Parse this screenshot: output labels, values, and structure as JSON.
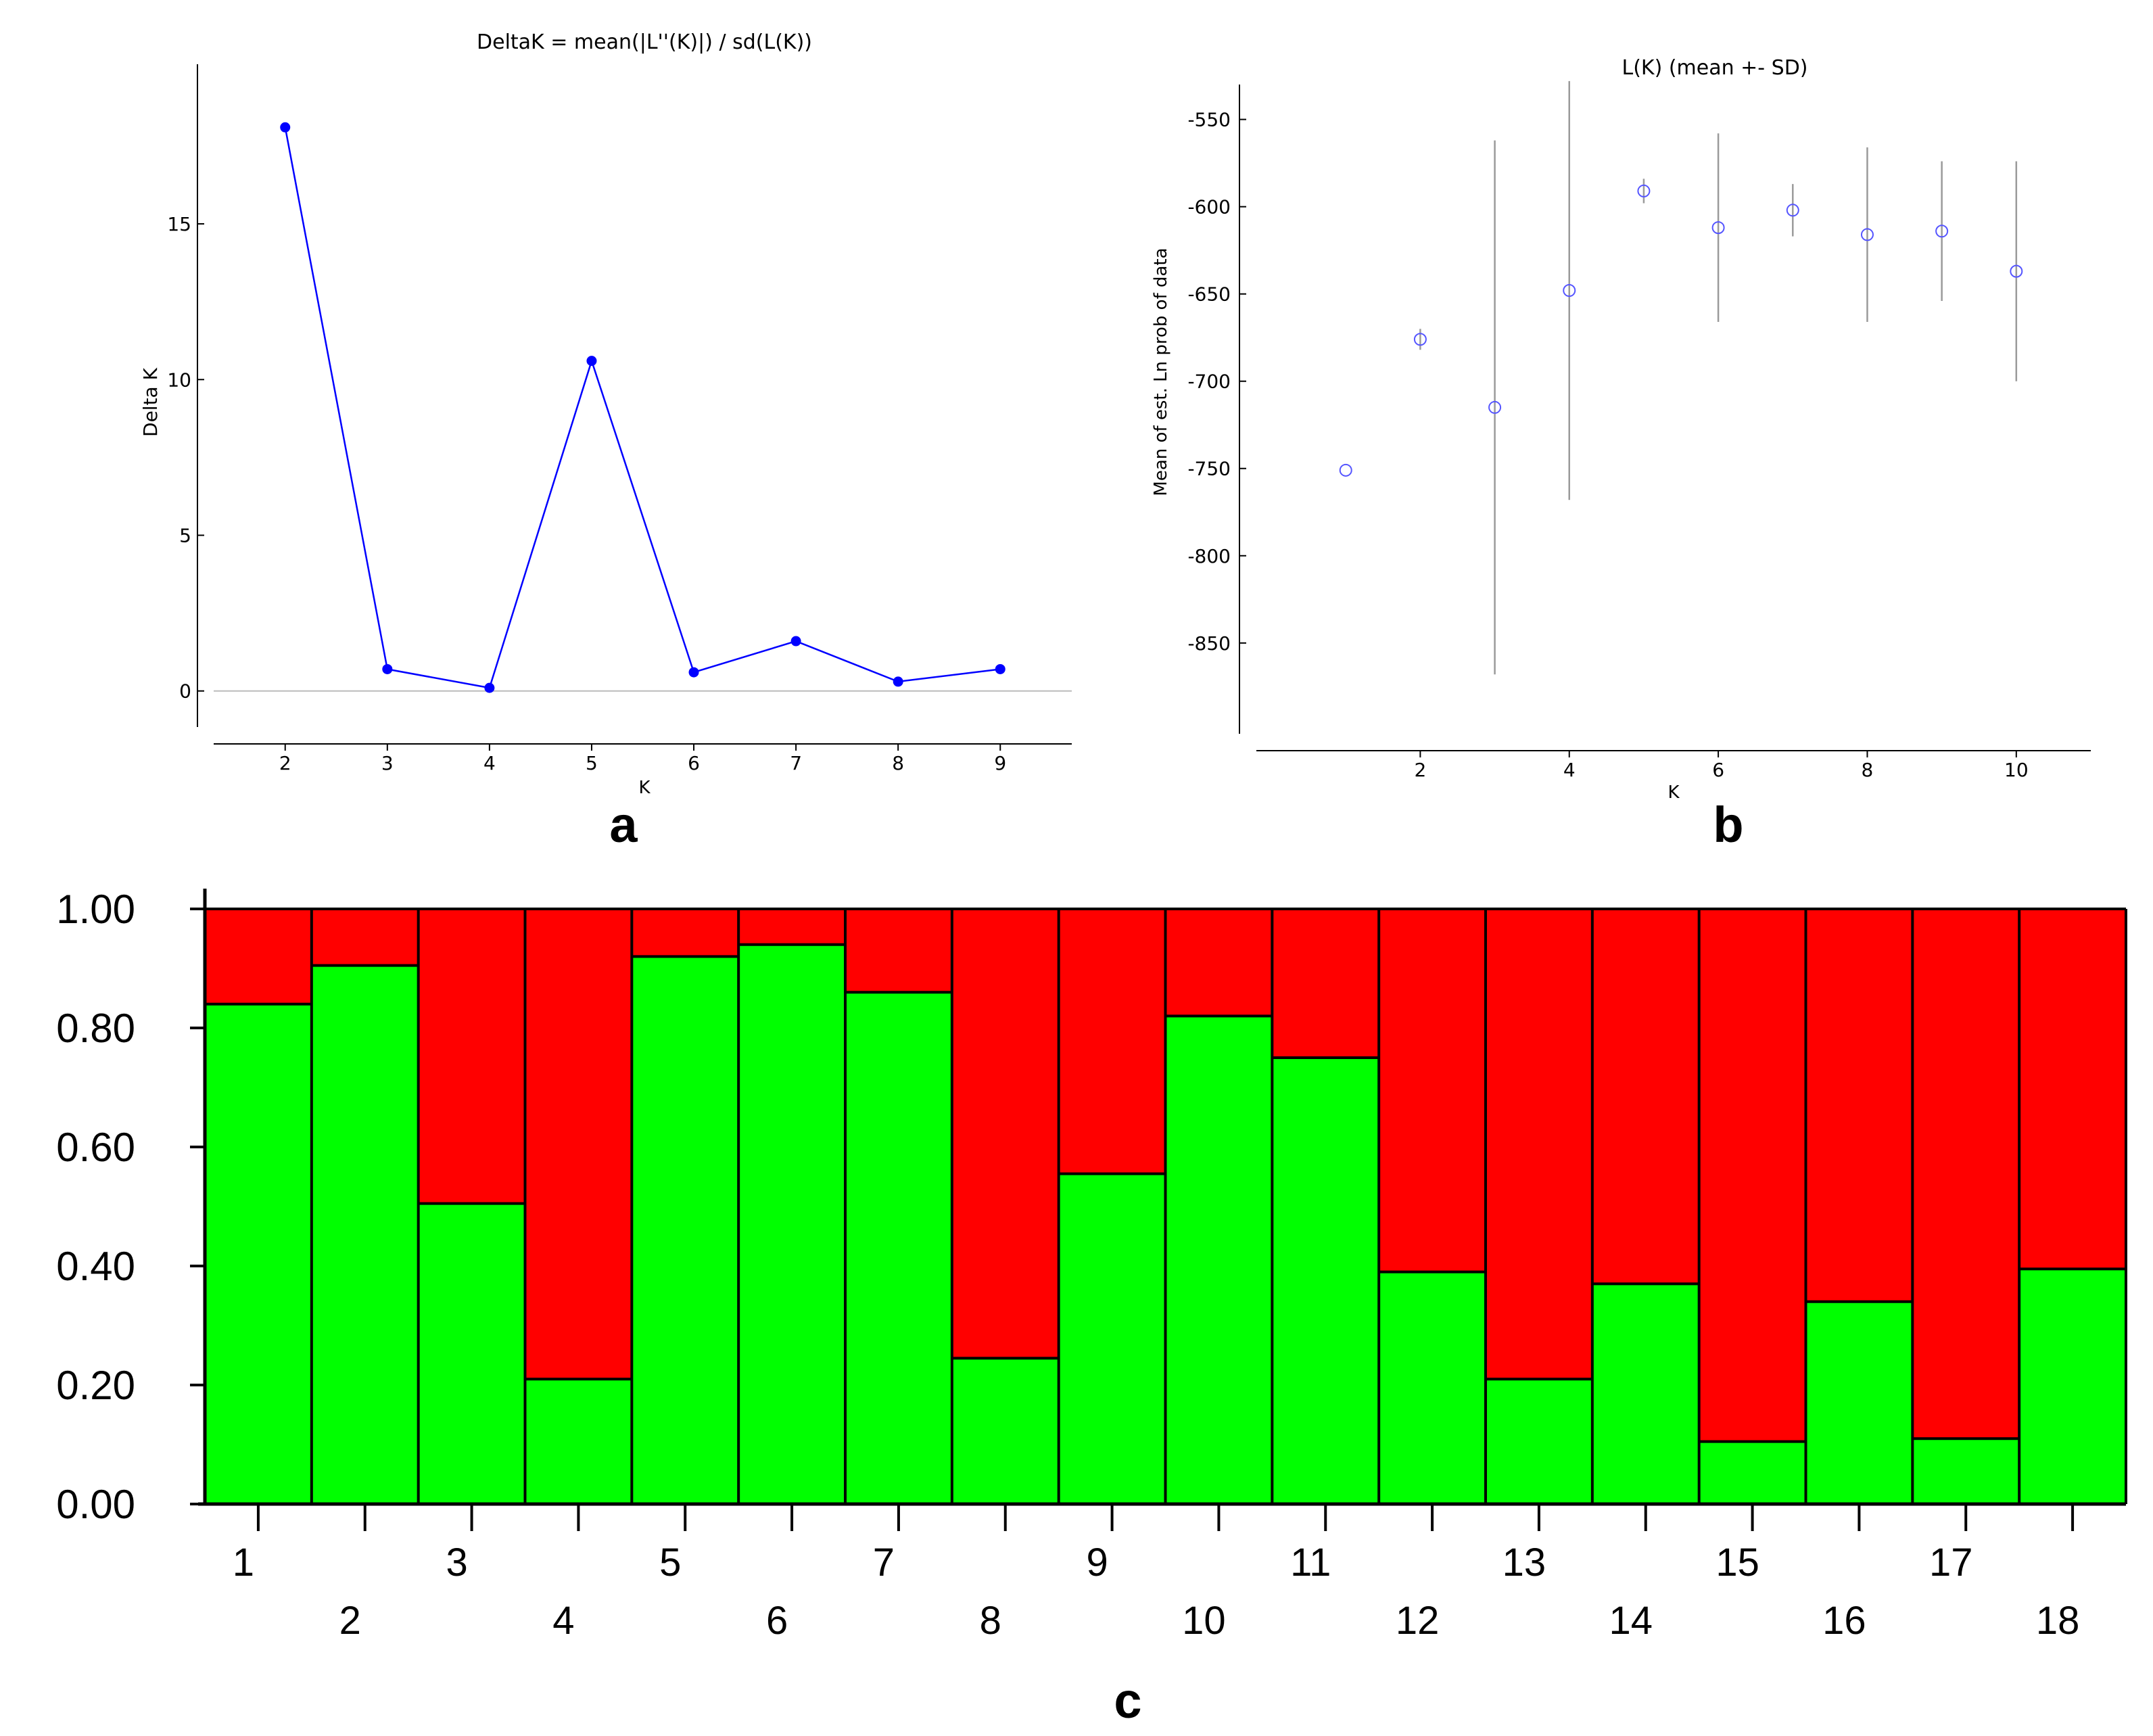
{
  "chart_data": [
    {
      "panel": "a",
      "type": "line",
      "title": "DeltaK = mean(|L''(K)|) / sd(L(K))",
      "xlabel": "K",
      "ylabel": "Delta K",
      "x": [
        2,
        3,
        4,
        5,
        6,
        7,
        8,
        9
      ],
      "y": [
        18.1,
        0.7,
        0.1,
        10.6,
        0.6,
        1.6,
        0.3,
        0.7
      ],
      "xticks": [
        "2",
        "3",
        "4",
        "5",
        "6",
        "7",
        "8",
        "9"
      ],
      "yticks": [
        "0",
        "5",
        "10",
        "15"
      ],
      "xlim": [
        1.3,
        9.7
      ],
      "ylim": [
        -1.7,
        19.8
      ],
      "color": "#0000ff",
      "zero_line_color": "#bbbbbb"
    },
    {
      "panel": "b",
      "type": "scatter",
      "title": "L(K) (mean +- SD)",
      "xlabel": "K",
      "ylabel": "Mean of est. Ln prob of data",
      "x": [
        1,
        2,
        3,
        4,
        5,
        6,
        7,
        8,
        9,
        10
      ],
      "mean": [
        -751,
        -676,
        -715,
        -648,
        -591,
        -612,
        -602,
        -616,
        -614,
        -637
      ],
      "sd": [
        0,
        6,
        153,
        120,
        7,
        54,
        15,
        50,
        40,
        63
      ],
      "xticks": [
        "2",
        "4",
        "6",
        "8",
        "10"
      ],
      "yticks": [
        "-550",
        "-600",
        "-650",
        "-700",
        "-750",
        "-800",
        "-850"
      ],
      "xlim": [
        -0.2,
        11.0
      ],
      "ylim": [
        -902,
        -530
      ],
      "marker_color": "#5555ff",
      "errorbar_color": "#9a9a9a"
    },
    {
      "panel": "c",
      "type": "bar",
      "stacked": true,
      "categories": [
        "1",
        "2",
        "3",
        "4",
        "5",
        "6",
        "7",
        "8",
        "9",
        "10",
        "11",
        "12",
        "13",
        "14",
        "15",
        "16",
        "17",
        "18"
      ],
      "series": [
        {
          "name": "green cluster",
          "color": "#00ff00",
          "values": [
            0.84,
            0.905,
            0.505,
            0.21,
            0.92,
            0.94,
            0.86,
            0.245,
            0.555,
            0.82,
            0.75,
            0.39,
            0.21,
            0.37,
            0.105,
            0.34,
            0.11,
            0.395
          ]
        },
        {
          "name": "red cluster",
          "color": "#ff0000",
          "values": [
            0.16,
            0.095,
            0.495,
            0.79,
            0.08,
            0.06,
            0.14,
            0.755,
            0.445,
            0.18,
            0.25,
            0.61,
            0.79,
            0.63,
            0.895,
            0.66,
            0.89,
            0.605
          ]
        }
      ],
      "yticks": [
        "0.00",
        "0.20",
        "0.40",
        "0.60",
        "0.80",
        "1.00"
      ],
      "ylim": [
        0,
        1
      ]
    }
  ],
  "labels": {
    "a": "a",
    "b": "b",
    "c": "c"
  }
}
